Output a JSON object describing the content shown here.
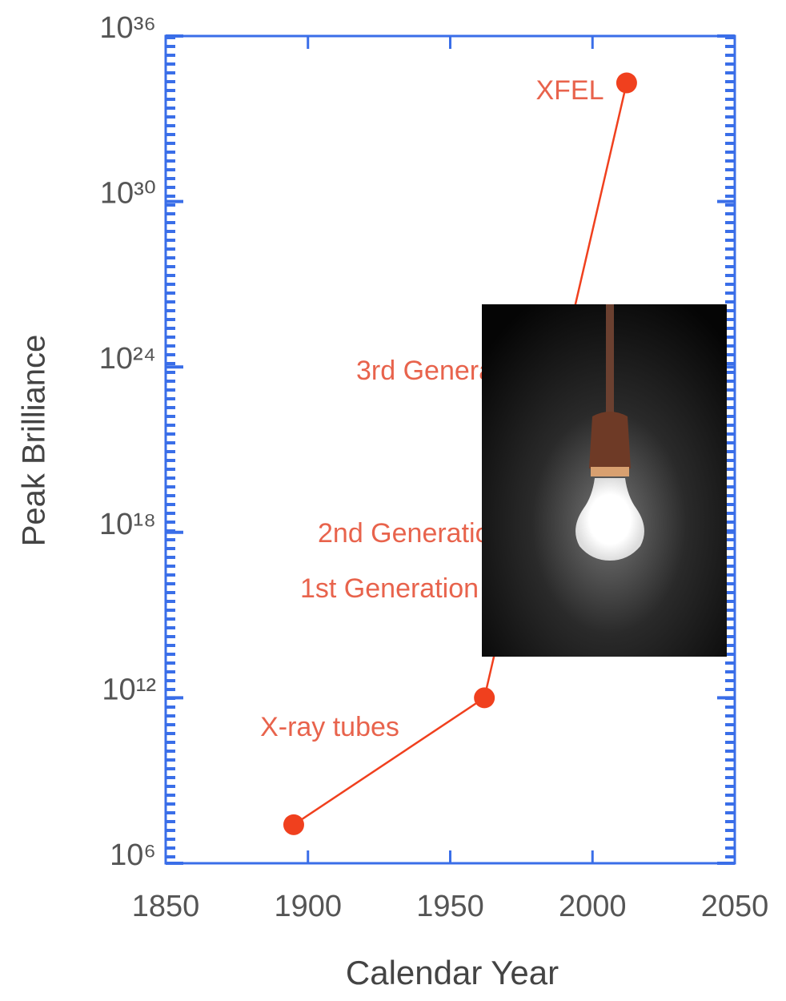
{
  "chart_data": {
    "type": "line",
    "x_label": "Calendar Year",
    "y_label": "Peak Brilliance",
    "yscale": "log",
    "xlim": [
      1850,
      2050
    ],
    "xticks": [
      1850,
      1900,
      1950,
      2000,
      2050
    ],
    "ylim": [
      1000000.0,
      1e+36
    ],
    "yticks": [
      {
        "value": 1000000.0,
        "label": "10⁶"
      },
      {
        "value": 1000000000000.0,
        "label": "10¹²"
      },
      {
        "value": 1e+18,
        "label": "10¹⁸"
      },
      {
        "value": 1e+24,
        "label": "10²⁴"
      },
      {
        "value": 1e+30,
        "label": "10³⁰"
      },
      {
        "value": 1e+36,
        "label": "10³⁶"
      }
    ],
    "series": [
      {
        "color": "#f0401e",
        "x": [
          1895,
          1962,
          2012
        ],
        "values": [
          25000000.0,
          1000000000000.0,
          2e+34
        ]
      }
    ],
    "annotations": [
      "XFEL",
      "3rd Generation",
      "2nd Generation",
      "1st Generation",
      "X-ray tubes"
    ]
  }
}
